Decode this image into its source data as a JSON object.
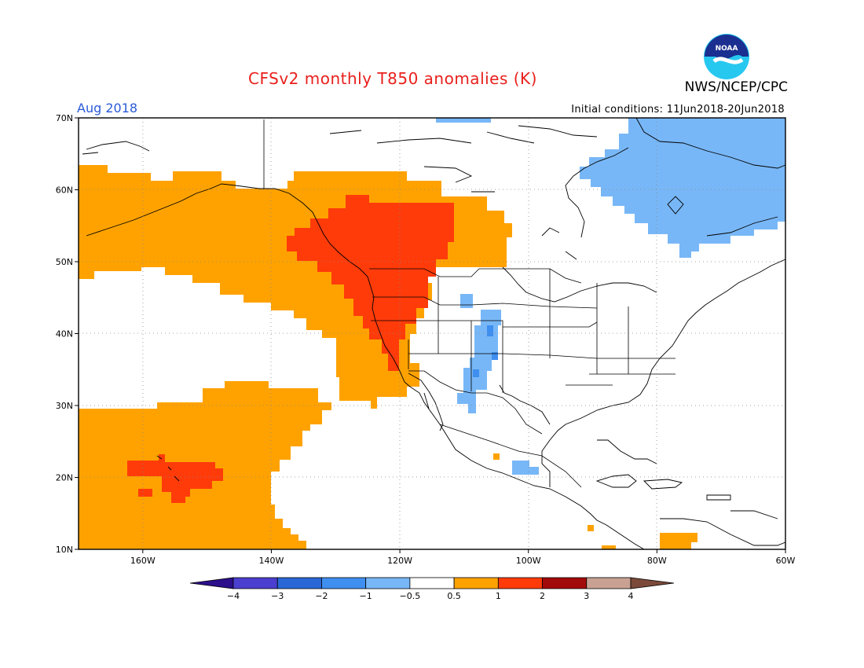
{
  "header": {
    "title": "CFSv2 monthly T850 anomalies (K)",
    "org": "NWS/NCEP/CPC",
    "month": "Aug 2018",
    "initial_conditions": "Initial conditions: 11Jun2018-20Jun2018",
    "logo_text": "NOAA"
  },
  "map": {
    "lon_range": [
      -170,
      -60
    ],
    "lat_range": [
      10,
      70
    ],
    "lon_ticks": [
      {
        "lon": -160,
        "label": "160W"
      },
      {
        "lon": -140,
        "label": "140W"
      },
      {
        "lon": -120,
        "label": "120W"
      },
      {
        "lon": -100,
        "label": "100W"
      },
      {
        "lon": -80,
        "label": "80W"
      },
      {
        "lon": -60,
        "label": "60W"
      }
    ],
    "lat_ticks": [
      {
        "lat": 70,
        "label": "70N"
      },
      {
        "lat": 60,
        "label": "60N"
      },
      {
        "lat": 50,
        "label": "50N"
      },
      {
        "lat": 40,
        "label": "40N"
      },
      {
        "lat": 30,
        "label": "30N"
      },
      {
        "lat": 20,
        "label": "20N"
      },
      {
        "lat": 10,
        "label": "10N"
      }
    ],
    "grid": "dotted"
  },
  "colorbar": {
    "colors": [
      "#2c0f8a",
      "#4b3fcf",
      "#2a67d6",
      "#3f8ff0",
      "#78b7f7",
      "#ffffff",
      "#ffa200",
      "#ff3b0a",
      "#a30a0a",
      "#c9a193",
      "#7b4a3a"
    ],
    "labels": [
      "-4",
      "-3",
      "-2",
      "-1",
      "-0.5",
      "0.5",
      "1",
      "2",
      "3",
      "4"
    ]
  },
  "anomalies": {
    "warm_light_color": "#ffa200",
    "warm_strong_color": "#ff3b0a",
    "cool_light_color": "#78b7f7",
    "cool_mid_color": "#3f8ff0"
  }
}
